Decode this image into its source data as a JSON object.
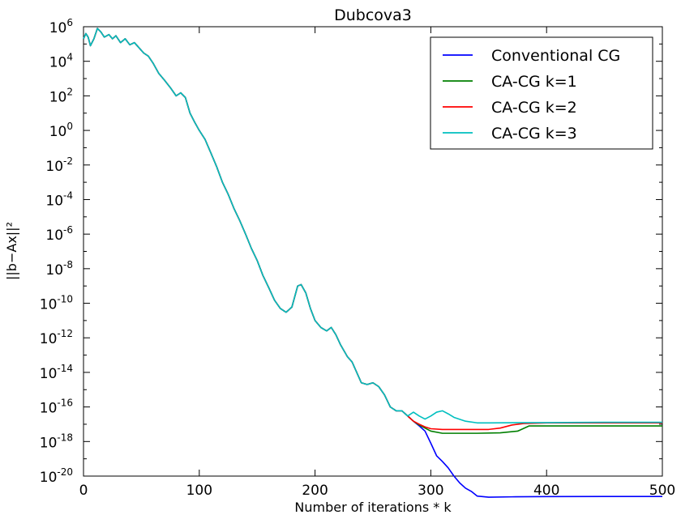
{
  "chart_data": {
    "type": "line",
    "title": "Dubcova3",
    "xlabel": "Number of iterations * k",
    "ylabel": "||b−Ax||²",
    "xlim": [
      0,
      500
    ],
    "ylim": [
      1e-20,
      1000000.0
    ],
    "yscale": "log",
    "grid": false,
    "legend_position": "top-right",
    "x_ticks": [
      "0",
      "100",
      "200",
      "300",
      "400",
      "500"
    ],
    "y_ticks": [
      {
        "base": "10",
        "exp": "6"
      },
      {
        "base": "10",
        "exp": "4"
      },
      {
        "base": "10",
        "exp": "2"
      },
      {
        "base": "10",
        "exp": "0"
      },
      {
        "base": "10",
        "exp": "-2"
      },
      {
        "base": "10",
        "exp": "-4"
      },
      {
        "base": "10",
        "exp": "-6"
      },
      {
        "base": "10",
        "exp": "-8"
      },
      {
        "base": "10",
        "exp": "-10"
      },
      {
        "base": "10",
        "exp": "-12"
      },
      {
        "base": "10",
        "exp": "-14"
      },
      {
        "base": "10",
        "exp": "-16"
      },
      {
        "base": "10",
        "exp": "-18"
      },
      {
        "base": "10",
        "exp": "-20"
      }
    ],
    "common_head": [
      [
        0,
        200000
      ],
      [
        2,
        400000
      ],
      [
        4,
        250000
      ],
      [
        6,
        80000
      ],
      [
        9,
        200000
      ],
      [
        12,
        800000
      ],
      [
        15,
        500000
      ],
      [
        18,
        250000
      ],
      [
        22,
        350000
      ],
      [
        25,
        200000
      ],
      [
        28,
        300000
      ],
      [
        32,
        120000
      ],
      [
        36,
        200000
      ],
      [
        40,
        90000
      ],
      [
        44,
        120000
      ],
      [
        48,
        60000
      ],
      [
        52,
        30000
      ],
      [
        56,
        20000
      ],
      [
        60,
        8000
      ],
      [
        65,
        2000
      ],
      [
        70,
        800
      ],
      [
        75,
        300
      ],
      [
        80,
        100
      ],
      [
        84,
        150
      ],
      [
        88,
        80
      ],
      [
        92,
        10
      ],
      [
        96,
        3
      ],
      [
        100,
        1
      ],
      [
        105,
        0.3
      ],
      [
        110,
        0.05
      ],
      [
        115,
        0.008
      ],
      [
        120,
        0.001
      ],
      [
        125,
        0.0002
      ],
      [
        130,
        3e-05
      ],
      [
        135,
        6e-06
      ],
      [
        140,
        1e-06
      ],
      [
        145,
        1.5e-07
      ],
      [
        150,
        3e-08
      ],
      [
        155,
        4e-09
      ],
      [
        160,
        8e-10
      ],
      [
        165,
        1.5e-10
      ],
      [
        170,
        5e-11
      ],
      [
        175,
        3e-11
      ],
      [
        180,
        6e-11
      ],
      [
        185,
        1e-09
      ],
      [
        188,
        1.2e-09
      ],
      [
        192,
        4e-10
      ],
      [
        196,
        5e-11
      ],
      [
        200,
        1e-11
      ],
      [
        205,
        4e-12
      ],
      [
        210,
        2.5e-12
      ],
      [
        214,
        4e-12
      ],
      [
        218,
        1.5e-12
      ],
      [
        222,
        4e-13
      ],
      [
        228,
        8e-14
      ],
      [
        232,
        4e-14
      ],
      [
        236,
        1e-14
      ],
      [
        240,
        2.5e-15
      ],
      [
        245,
        2e-15
      ],
      [
        250,
        2.5e-15
      ],
      [
        255,
        1.5e-15
      ],
      [
        260,
        5e-16
      ],
      [
        265,
        1e-16
      ],
      [
        270,
        6e-17
      ],
      [
        275,
        6e-17
      ],
      [
        280,
        3e-17
      ]
    ],
    "series": [
      {
        "name": "Conventional CG",
        "color": "#0000ff",
        "tail": [
          [
            285,
            1.5e-17
          ],
          [
            290,
            8e-18
          ],
          [
            295,
            4e-18
          ],
          [
            300,
            8e-19
          ],
          [
            305,
            1.5e-19
          ],
          [
            310,
            7e-20
          ],
          [
            315,
            3e-20
          ],
          [
            320,
            1e-20
          ],
          [
            325,
            4e-21
          ],
          [
            330,
            2e-21
          ],
          [
            335,
            1.3e-21
          ],
          [
            340,
            7e-22
          ],
          [
            350,
            6e-22
          ],
          [
            370,
            6.3e-22
          ],
          [
            400,
            6.5e-22
          ],
          [
            450,
            6.6e-22
          ],
          [
            500,
            6.6e-22
          ]
        ]
      },
      {
        "name": "CA-CG k=1",
        "color": "#007f00",
        "tail": [
          [
            285,
            1.5e-17
          ],
          [
            290,
            9e-18
          ],
          [
            295,
            6e-18
          ],
          [
            300,
            4e-18
          ],
          [
            310,
            3e-18
          ],
          [
            320,
            3e-18
          ],
          [
            340,
            3e-18
          ],
          [
            360,
            3.2e-18
          ],
          [
            375,
            4e-18
          ],
          [
            385,
            8e-18
          ],
          [
            400,
            8e-18
          ],
          [
            450,
            8e-18
          ],
          [
            500,
            8e-18
          ]
        ]
      },
      {
        "name": "CA-CG k=2",
        "color": "#ff0000",
        "tail": [
          [
            285,
            1.5e-17
          ],
          [
            290,
            1e-17
          ],
          [
            295,
            7e-18
          ],
          [
            300,
            5.5e-18
          ],
          [
            310,
            5e-18
          ],
          [
            330,
            5e-18
          ],
          [
            350,
            5e-18
          ],
          [
            360,
            6e-18
          ],
          [
            370,
            9e-18
          ],
          [
            380,
            1.1e-17
          ],
          [
            400,
            1.2e-17
          ],
          [
            450,
            1.2e-17
          ],
          [
            500,
            1.2e-17
          ]
        ]
      },
      {
        "name": "CA-CG k=3",
        "color": "#00bfbf",
        "tail": [
          [
            285,
            5e-17
          ],
          [
            290,
            3e-17
          ],
          [
            295,
            2e-17
          ],
          [
            300,
            3e-17
          ],
          [
            305,
            5e-17
          ],
          [
            310,
            6e-17
          ],
          [
            315,
            4e-17
          ],
          [
            320,
            2.5e-17
          ],
          [
            330,
            1.5e-17
          ],
          [
            340,
            1.2e-17
          ],
          [
            350,
            1.2e-17
          ],
          [
            400,
            1.25e-17
          ],
          [
            450,
            1.3e-17
          ],
          [
            500,
            1.3e-17
          ]
        ]
      }
    ]
  }
}
